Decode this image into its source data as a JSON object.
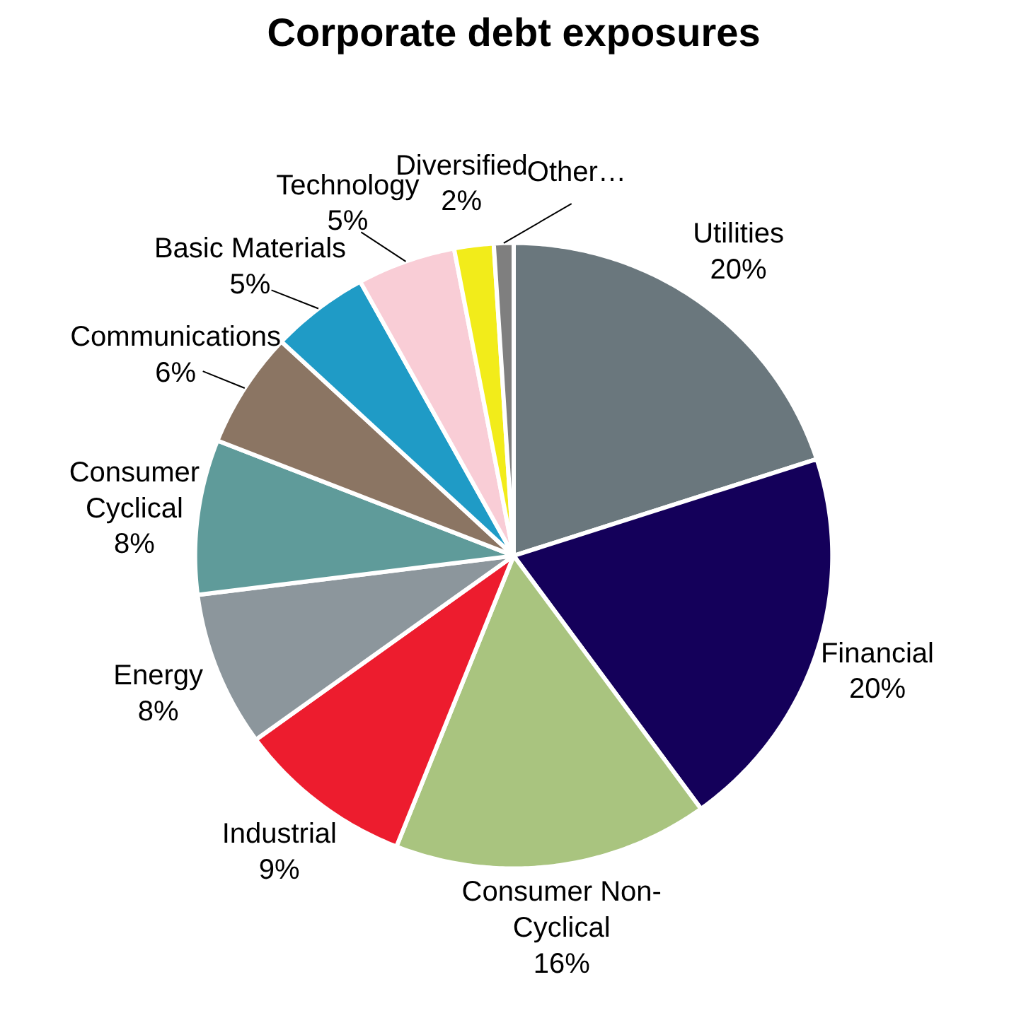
{
  "chart_data": {
    "type": "pie",
    "title": "Corporate debt exposures",
    "categories": [
      "Utilities",
      "Financial",
      "Consumer Non-Cyclical",
      "Industrial",
      "Energy",
      "Consumer Cyclical",
      "Communications",
      "Basic Materials",
      "Technology",
      "Diversified",
      "Other…"
    ],
    "values": [
      20,
      20,
      16,
      9,
      8,
      8,
      6,
      5,
      5,
      2,
      1
    ],
    "value_labels": [
      "20%",
      "20%",
      "16%",
      "9%",
      "8%",
      "8%",
      "6%",
      "5%",
      "5%",
      "2%",
      null
    ],
    "colors": [
      "#6a777d",
      "#14005a",
      "#a9c47f",
      "#ed1c2e",
      "#8c969c",
      "#5f9b9a",
      "#8b7563",
      "#1f9bc6",
      "#f9cdd6",
      "#f2ec1a",
      "#7f7f7f"
    ]
  }
}
